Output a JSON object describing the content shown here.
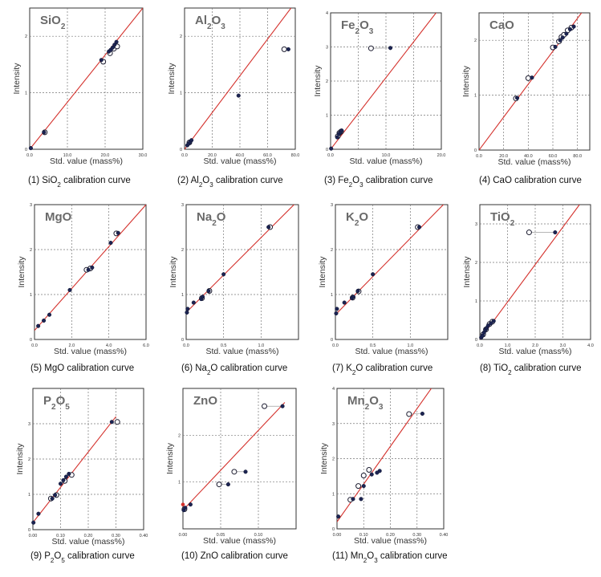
{
  "chart_data": [
    {
      "type": "scatter",
      "title_main": "SiO",
      "title_sub": "2",
      "xlabel": "Std. value (mass%)",
      "ylabel": "Intensity",
      "caption_prefix": "(1) SiO",
      "caption_sub": "2",
      "caption_suffix": " calibration curve",
      "xlim": [
        0,
        30
      ],
      "ylim": [
        0,
        2.5
      ],
      "xticks": [
        0,
        10,
        20,
        30
      ],
      "xtick_labels": [
        "0.0",
        "10.0",
        "20.0",
        "30.0"
      ],
      "yticks": [
        0,
        1,
        2
      ],
      "ytick_labels": [
        "0",
        "1",
        "2"
      ],
      "fit": [
        [
          0,
          0
        ],
        [
          30,
          2.5
        ]
      ],
      "points_filled": [
        [
          0.3,
          0.02
        ],
        [
          3.8,
          0.3
        ],
        [
          19.0,
          1.58
        ],
        [
          21.0,
          1.73
        ],
        [
          21.5,
          1.76
        ],
        [
          22.0,
          1.8
        ],
        [
          22.5,
          1.85
        ],
        [
          23.0,
          1.9
        ]
      ],
      "points_open": [
        [
          4.0,
          0.3
        ],
        [
          19.5,
          1.55
        ],
        [
          21.3,
          1.7
        ],
        [
          22.3,
          1.78
        ],
        [
          23.2,
          1.82
        ]
      ]
    },
    {
      "type": "scatter",
      "title_main": "Al",
      "title_sub": "2",
      "title_tail": "O",
      "title_sub2": "3",
      "xlabel": "Std. value (mass%)",
      "ylabel": "Intensity",
      "caption_prefix": "(2) Al",
      "caption_sub": "2",
      "caption_mid": "O",
      "caption_sub2": "3",
      "caption_suffix": " calibration curve",
      "xlim": [
        0,
        80
      ],
      "ylim": [
        0,
        2.5
      ],
      "xticks": [
        0,
        20,
        40,
        60,
        80
      ],
      "xtick_labels": [
        "0.0",
        "20.0",
        "40.0",
        "60.0",
        "80.0"
      ],
      "yticks": [
        0,
        1,
        2
      ],
      "ytick_labels": [
        "0",
        "1",
        "2"
      ],
      "fit": [
        [
          0,
          0
        ],
        [
          80,
          2.6
        ]
      ],
      "points_filled": [
        [
          2,
          0.07
        ],
        [
          3,
          0.1
        ],
        [
          4,
          0.13
        ],
        [
          5,
          0.16
        ],
        [
          39,
          0.95
        ],
        [
          75,
          1.77
        ]
      ],
      "points_open": [
        [
          3.5,
          0.12
        ],
        [
          72,
          1.77
        ]
      ]
    },
    {
      "type": "scatter",
      "title_main": "Fe",
      "title_sub": "2",
      "title_tail": "O",
      "title_sub2": "3",
      "xlabel": "Std. value (mass%)",
      "ylabel": "Intensity",
      "caption_prefix": "(3) Fe",
      "caption_sub": "2",
      "caption_mid": "O",
      "caption_sub2": "3",
      "caption_suffix": " calibration curve",
      "xlim": [
        0,
        20
      ],
      "ylim": [
        0,
        4
      ],
      "xticks": [
        0,
        5,
        10,
        15,
        20
      ],
      "xtick_labels": [
        "0.0",
        "",
        "10.0",
        "",
        "20.0"
      ],
      "yticks": [
        0,
        1,
        2,
        3,
        4
      ],
      "ytick_labels": [
        "0",
        "1",
        "2",
        "3",
        "4"
      ],
      "fit": [
        [
          0,
          0
        ],
        [
          20,
          4.2
        ]
      ],
      "points_filled": [
        [
          0.1,
          0.02
        ],
        [
          1.2,
          0.35
        ],
        [
          1.5,
          0.45
        ],
        [
          1.8,
          0.5
        ],
        [
          2.0,
          0.55
        ],
        [
          10.8,
          2.97
        ]
      ],
      "points_open": [
        [
          1.3,
          0.38
        ],
        [
          1.6,
          0.48
        ],
        [
          1.9,
          0.52
        ],
        [
          7.3,
          2.96
        ]
      ],
      "connectors": [
        [
          [
            7.3,
            2.96
          ],
          [
            10.8,
            2.97
          ]
        ]
      ]
    },
    {
      "type": "scatter",
      "title_main": "CaO",
      "xlabel": "",
      "ylabel": "",
      "caption_prefix": "(4) CaO",
      "caption_suffix": " calibration curve",
      "xlim": [
        0,
        90
      ],
      "ylim": [
        0,
        2.5
      ],
      "xticks": [
        0,
        20,
        40,
        60,
        80
      ],
      "xtick_labels": [
        "0.0",
        "20.0",
        "40.0",
        "60.0",
        "80.0"
      ],
      "yticks": [
        0,
        1,
        2
      ],
      "ytick_labels": [
        "0",
        "1",
        "2"
      ],
      "fit": [
        [
          0,
          0
        ],
        [
          90,
          2.7
        ]
      ],
      "points_filled": [
        [
          31,
          0.95
        ],
        [
          43,
          1.32
        ],
        [
          62,
          1.88
        ],
        [
          66,
          2.0
        ],
        [
          68,
          2.05
        ],
        [
          71,
          2.12
        ],
        [
          74,
          2.2
        ],
        [
          77,
          2.25
        ]
      ],
      "points_open": [
        [
          30,
          0.94
        ],
        [
          40,
          1.31
        ],
        [
          60,
          1.87
        ],
        [
          65,
          1.98
        ],
        [
          67,
          2.06
        ],
        [
          69,
          2.1
        ],
        [
          72,
          2.18
        ],
        [
          75,
          2.23
        ]
      ]
    },
    {
      "type": "scatter",
      "title_main": "MgO",
      "xlabel": "Std. value (mass%)",
      "ylabel": "Intensity",
      "caption_prefix": "(5) MgO",
      "caption_suffix": " calibration curve",
      "xlim": [
        0,
        6
      ],
      "ylim": [
        0,
        3
      ],
      "xticks": [
        0,
        2,
        4,
        6
      ],
      "xtick_labels": [
        "0.0",
        "2.0",
        "4.0",
        "6.0"
      ],
      "yticks": [
        0,
        1,
        2,
        3
      ],
      "ytick_labels": [
        "0",
        "1",
        "2",
        "3"
      ],
      "fit": [
        [
          0,
          0.2
        ],
        [
          6,
          3.0
        ]
      ],
      "points_filled": [
        [
          0.2,
          0.3
        ],
        [
          0.5,
          0.42
        ],
        [
          0.8,
          0.55
        ],
        [
          1.9,
          1.1
        ],
        [
          2.9,
          1.55
        ],
        [
          3.1,
          1.6
        ],
        [
          4.1,
          2.15
        ],
        [
          4.5,
          2.37
        ]
      ],
      "points_open": [
        [
          2.8,
          1.55
        ],
        [
          3.0,
          1.58
        ],
        [
          4.4,
          2.36
        ]
      ]
    },
    {
      "type": "scatter",
      "title_main": "Na",
      "title_sub": "2",
      "title_tail": "O",
      "xlabel": "Std. value (mass%)",
      "ylabel": "Intensity",
      "caption_prefix": "(6) Na",
      "caption_sub": "2",
      "caption_mid": "O",
      "caption_suffix": " calibration curve",
      "xlim": [
        0,
        1.5
      ],
      "ylim": [
        0,
        3
      ],
      "xticks": [
        0,
        0.5,
        1.0
      ],
      "xtick_labels": [
        "0.0",
        "0.5",
        "1.0"
      ],
      "yticks": [
        0,
        1,
        2,
        3
      ],
      "ytick_labels": [
        "0",
        "1",
        "2",
        "3"
      ],
      "fit": [
        [
          0,
          0.6
        ],
        [
          1.5,
          3.1
        ]
      ],
      "points_filled": [
        [
          0.01,
          0.6
        ],
        [
          0.02,
          0.68
        ],
        [
          0.1,
          0.82
        ],
        [
          0.2,
          0.9
        ],
        [
          0.22,
          0.95
        ],
        [
          0.3,
          1.08
        ],
        [
          0.5,
          1.45
        ],
        [
          1.1,
          2.5
        ]
      ],
      "points_open": [
        [
          0.21,
          0.92
        ],
        [
          0.31,
          1.08
        ],
        [
          1.12,
          2.5
        ]
      ]
    },
    {
      "type": "scatter",
      "title_main": "K",
      "title_sub": "2",
      "title_tail": "O",
      "xlabel": "Std. value (mass%)",
      "ylabel": "Intensity",
      "caption_prefix": "(7) K",
      "caption_sub": "2",
      "caption_mid": "O",
      "caption_suffix": " calibration curve",
      "xlim": [
        0,
        1.5
      ],
      "ylim": [
        0,
        3
      ],
      "xticks": [
        0,
        0.5,
        1.0
      ],
      "xtick_labels": [
        "0.0",
        "0.5",
        "1.0"
      ],
      "yticks": [
        0,
        1,
        2,
        3
      ],
      "ytick_labels": [
        "0",
        "1",
        "2",
        "3"
      ],
      "fit": [
        [
          0,
          0.55
        ],
        [
          1.5,
          3.1
        ]
      ],
      "points_filled": [
        [
          0.01,
          0.58
        ],
        [
          0.02,
          0.68
        ],
        [
          0.12,
          0.82
        ],
        [
          0.22,
          0.92
        ],
        [
          0.24,
          0.95
        ],
        [
          0.3,
          1.08
        ],
        [
          0.5,
          1.45
        ],
        [
          1.12,
          2.5
        ]
      ],
      "points_open": [
        [
          0.23,
          0.93
        ],
        [
          0.31,
          1.07
        ],
        [
          1.1,
          2.5
        ]
      ]
    },
    {
      "type": "scatter",
      "title_main": "TiO",
      "title_sub": "2",
      "xlabel": "Std. value (mass%)",
      "ylabel": "Intensity",
      "caption_prefix": "(8) TiO",
      "caption_sub": "2",
      "caption_suffix": " calibration curve",
      "xlim": [
        0,
        4
      ],
      "ylim": [
        0,
        3.5
      ],
      "xticks": [
        0,
        1,
        2,
        3,
        4
      ],
      "xtick_labels": [
        "0.0",
        "1.0",
        "2.0",
        "3.0",
        "4.0"
      ],
      "yticks": [
        0,
        1,
        2,
        3
      ],
      "ytick_labels": [
        "0",
        "1",
        "2",
        "3"
      ],
      "fit": [
        [
          0,
          0
        ],
        [
          3.6,
          3.5
        ]
      ],
      "points_filled": [
        [
          0.05,
          0.05
        ],
        [
          0.1,
          0.1
        ],
        [
          0.15,
          0.18
        ],
        [
          0.2,
          0.25
        ],
        [
          0.25,
          0.3
        ],
        [
          0.3,
          0.36
        ],
        [
          0.4,
          0.42
        ],
        [
          0.5,
          0.48
        ],
        [
          2.72,
          2.78
        ]
      ],
      "points_open": [
        [
          0.12,
          0.13
        ],
        [
          0.22,
          0.26
        ],
        [
          0.35,
          0.4
        ],
        [
          0.45,
          0.46
        ],
        [
          1.78,
          2.78
        ]
      ],
      "connectors": [
        [
          [
            1.78,
            2.78
          ],
          [
            2.72,
            2.78
          ]
        ]
      ]
    },
    {
      "type": "scatter",
      "title_main": "P",
      "title_sub": "2",
      "title_tail": "O",
      "title_sub2": "5",
      "xlabel": "Std. value (mass%)",
      "ylabel": "Intensity",
      "caption_prefix": "(9) P",
      "caption_sub": "2",
      "caption_mid": "O",
      "caption_sub2": "5",
      "caption_suffix": " calibration curve",
      "xlim": [
        0,
        0.4
      ],
      "ylim": [
        0,
        4
      ],
      "xticks": [
        0,
        0.1,
        0.2,
        0.3,
        0.4
      ],
      "xtick_labels": [
        "0.00",
        "0.10",
        "0.20",
        "0.30",
        "0.40"
      ],
      "yticks": [
        0,
        1,
        2,
        3
      ],
      "ytick_labels": [
        "0",
        "1",
        "2",
        "3"
      ],
      "fit": [
        [
          0,
          0.2
        ],
        [
          0.3,
          3.2
        ]
      ],
      "points_filled": [
        [
          0.002,
          0.2
        ],
        [
          0.02,
          0.45
        ],
        [
          0.07,
          0.88
        ],
        [
          0.08,
          0.98
        ],
        [
          0.1,
          1.3
        ],
        [
          0.11,
          1.4
        ],
        [
          0.12,
          1.5
        ],
        [
          0.13,
          1.58
        ],
        [
          0.285,
          3.05
        ]
      ],
      "points_open": [
        [
          0.065,
          0.88
        ],
        [
          0.085,
          0.98
        ],
        [
          0.115,
          1.38
        ],
        [
          0.14,
          1.55
        ],
        [
          0.305,
          3.05
        ]
      ]
    },
    {
      "type": "scatter",
      "title_main": "ZnO",
      "xlabel": "Std. value (mass%)",
      "ylabel": "Intensity",
      "caption_prefix": "(10) ZnO",
      "caption_suffix": " calibration curve",
      "xlim": [
        0,
        0.15
      ],
      "ylim": [
        0,
        3
      ],
      "xticks": [
        0,
        0.05,
        0.1,
        0.15
      ],
      "xtick_labels": [
        "0.00",
        "0.05",
        "0.10",
        ""
      ],
      "yticks": [
        1,
        2
      ],
      "ytick_labels": [
        "1",
        "2"
      ],
      "fit": [
        [
          0,
          0.4
        ],
        [
          0.135,
          2.7
        ]
      ],
      "points_filled": [
        [
          0.001,
          0.4
        ],
        [
          0.003,
          0.45
        ],
        [
          0.01,
          0.52
        ],
        [
          0.06,
          0.95
        ],
        [
          0.083,
          1.22
        ],
        [
          0.132,
          2.62
        ]
      ],
      "points_open": [
        [
          0.002,
          0.42
        ],
        [
          0.048,
          0.95
        ],
        [
          0.068,
          1.22
        ],
        [
          0.108,
          2.62
        ]
      ],
      "points_red": [
        [
          0.0,
          0.52
        ]
      ],
      "connectors": [
        [
          [
            0.048,
            0.95
          ],
          [
            0.06,
            0.95
          ]
        ],
        [
          [
            0.068,
            1.22
          ],
          [
            0.083,
            1.22
          ]
        ],
        [
          [
            0.108,
            2.62
          ],
          [
            0.132,
            2.62
          ]
        ]
      ]
    },
    {
      "type": "scatter",
      "title_main": "Mn",
      "title_sub": "2",
      "title_tail": "O",
      "title_sub2": "3",
      "xlabel": "Std. value (mass%)",
      "ylabel": "Intensity",
      "caption_prefix": "(11) Mn",
      "caption_sub": "2",
      "caption_mid": "O",
      "caption_sub2": "3",
      "caption_suffix": " calibration curve",
      "xlim": [
        0,
        0.4
      ],
      "ylim": [
        0,
        4
      ],
      "xticks": [
        0,
        0.1,
        0.2,
        0.3,
        0.4
      ],
      "xtick_labels": [
        "0.00",
        "0.10",
        "0.20",
        "0.30",
        "0.40"
      ],
      "yticks": [
        0,
        1,
        2,
        3,
        4
      ],
      "ytick_labels": [
        "0",
        "1",
        "2",
        "3",
        "4"
      ],
      "fit": [
        [
          0,
          0.2
        ],
        [
          0.4,
          4.5
        ]
      ],
      "points_filled": [
        [
          0.005,
          0.35
        ],
        [
          0.06,
          0.85
        ],
        [
          0.09,
          0.85
        ],
        [
          0.1,
          1.22
        ],
        [
          0.13,
          1.55
        ],
        [
          0.15,
          1.6
        ],
        [
          0.16,
          1.65
        ],
        [
          0.32,
          3.28
        ]
      ],
      "points_open": [
        [
          0.05,
          0.83
        ],
        [
          0.08,
          1.22
        ],
        [
          0.1,
          1.52
        ],
        [
          0.12,
          1.68
        ],
        [
          0.27,
          3.27
        ]
      ],
      "connectors": [
        [
          [
            0.27,
            3.27
          ],
          [
            0.32,
            3.28
          ]
        ]
      ]
    }
  ]
}
